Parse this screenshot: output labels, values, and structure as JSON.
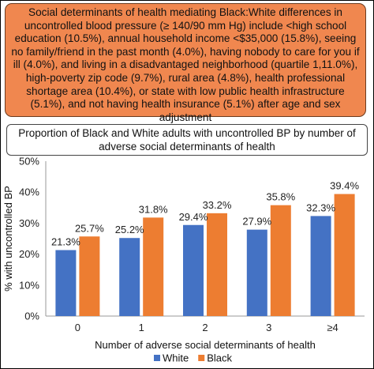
{
  "callout": {
    "text": "Social determinants of health mediating Black:White differences in uncontrolled blood pressure (≥ 140/90 mm Hg) include <high school education (10.5%), annual household income <$35,000 (15.8%), seeing no family/friend in the past month (4.0%), having nobody to care for you if ill (4.0%), and living in a disadvantaged neighborhood (quartile 1,11.0%), high-poverty zip code (9.7%), rural area (4.8%), health professional shortage area (10.4%), or state with low public health infrastructure (5.1%), and not having health insurance (5.1%) after age and sex adjustment"
  },
  "chart_data": {
    "type": "bar",
    "title": "Proportion of Black and White adults with uncontrolled BP by number of adverse social determinants of health",
    "xlabel": "Number of adverse social determinants of health",
    "ylabel": "% with uncontrolled BP",
    "categories": [
      "0",
      "1",
      "2",
      "3",
      "≥4"
    ],
    "ylim": [
      0,
      50
    ],
    "yticks": [
      0,
      10,
      20,
      30,
      40,
      50
    ],
    "ytick_labels": [
      "0%",
      "10%",
      "20%",
      "30%",
      "40%",
      "50%"
    ],
    "grid": false,
    "legend_position": "bottom",
    "series": [
      {
        "name": "White",
        "color": "#4472c4",
        "values": [
          21.3,
          25.2,
          29.4,
          27.9,
          32.3
        ],
        "labels": [
          "21.3%",
          "25.2%",
          "29.4%",
          "27.9%",
          "32.3%"
        ]
      },
      {
        "name": "Black",
        "color": "#ed7d31",
        "values": [
          25.7,
          31.8,
          33.2,
          35.8,
          39.4
        ],
        "labels": [
          "25.7%",
          "31.8%",
          "33.2%",
          "35.8%",
          "39.4%"
        ]
      }
    ]
  }
}
